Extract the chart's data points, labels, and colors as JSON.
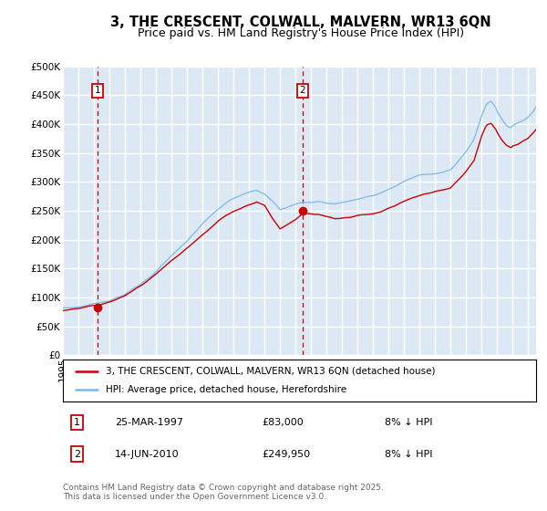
{
  "title": "3, THE CRESCENT, COLWALL, MALVERN, WR13 6QN",
  "subtitle": "Price paid vs. HM Land Registry's House Price Index (HPI)",
  "ylim": [
    0,
    500000
  ],
  "yticks": [
    0,
    50000,
    100000,
    150000,
    200000,
    250000,
    300000,
    350000,
    400000,
    450000,
    500000
  ],
  "ytick_labels": [
    "£0",
    "£50K",
    "£100K",
    "£150K",
    "£200K",
    "£250K",
    "£300K",
    "£350K",
    "£400K",
    "£450K",
    "£500K"
  ],
  "xlim_start": 1995.0,
  "xlim_end": 2025.5,
  "plot_bg_color": "#dce9f5",
  "grid_color": "#ffffff",
  "hpi_line_color": "#7bb8e8",
  "price_line_color": "#cc0000",
  "dashed_line_color": "#cc0000",
  "sale1_x": 1997.22,
  "sale1_y": 83000,
  "sale1_label": "1",
  "sale2_x": 2010.45,
  "sale2_y": 249950,
  "sale2_label": "2",
  "legend_label1": "3, THE CRESCENT, COLWALL, MALVERN, WR13 6QN (detached house)",
  "legend_label2": "HPI: Average price, detached house, Herefordshire",
  "annotation1_date": "25-MAR-1997",
  "annotation1_price": "£83,000",
  "annotation1_hpi": "8% ↓ HPI",
  "annotation2_date": "14-JUN-2010",
  "annotation2_price": "£249,950",
  "annotation2_hpi": "8% ↓ HPI",
  "footer": "Contains HM Land Registry data © Crown copyright and database right 2025.\nThis data is licensed under the Open Government Licence v3.0.",
  "title_fontsize": 10.5,
  "subtitle_fontsize": 9,
  "tick_fontsize": 7.5,
  "legend_fontsize": 7.5,
  "annotation_fontsize": 8,
  "footer_fontsize": 6.5
}
